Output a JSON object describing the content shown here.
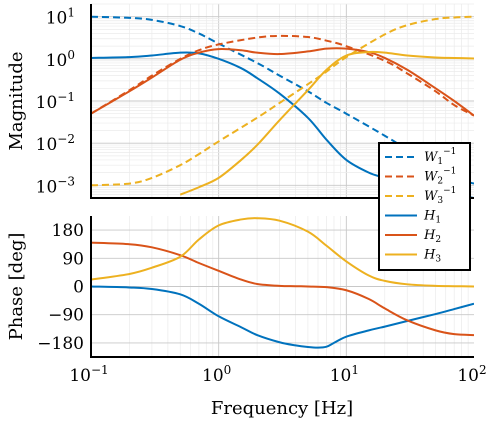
{
  "chart_data": {
    "type": "line",
    "xscale": "log",
    "xlim": [
      0.1,
      100
    ],
    "xlabel": "Frequency [Hz]",
    "x_tick_labels": [
      "10^-1",
      "10^0",
      "10^1",
      "10^2"
    ],
    "x_ticks": [
      0.1,
      1,
      10,
      100
    ],
    "grid": true,
    "legend": {
      "placement": "right, spanning both panels",
      "entries": [
        {
          "label": "W1^-1",
          "base": "W",
          "sub": "1",
          "sup": "−1",
          "color": "#0072BD",
          "dash": true
        },
        {
          "label": "W2^-1",
          "base": "W",
          "sub": "2",
          "sup": "−1",
          "color": "#D95319",
          "dash": true
        },
        {
          "label": "W3^-1",
          "base": "W",
          "sub": "3",
          "sup": "−1",
          "color": "#EDB120",
          "dash": true
        },
        {
          "label": "H1",
          "base": "H",
          "sub": "1",
          "sup": "",
          "color": "#0072BD",
          "dash": false
        },
        {
          "label": "H2",
          "base": "H",
          "sub": "2",
          "sup": "",
          "color": "#D95319",
          "dash": false
        },
        {
          "label": "H3",
          "base": "H",
          "sub": "3",
          "sup": "",
          "color": "#EDB120",
          "dash": false
        }
      ]
    },
    "panels": [
      {
        "name": "magnitude",
        "ylabel": "Magnitude",
        "yscale": "log",
        "ylim": [
          0.0005,
          20
        ],
        "y_ticks": [
          0.001,
          0.01,
          0.1,
          1,
          10
        ],
        "y_tick_labels": [
          "10^-3",
          "10^-2",
          "10^-1",
          "10^0",
          "10^1"
        ],
        "series": [
          {
            "name": "W1^-1",
            "color": "#0072BD",
            "dash": true,
            "x": [
              0.1,
              0.2,
              0.3,
              0.5,
              0.7,
              1,
              2,
              3,
              5,
              7,
              10,
              20,
              30,
              50,
              70,
              100
            ],
            "y": [
              10,
              9.4,
              8.4,
              6,
              4,
              2.3,
              0.8,
              0.4,
              0.17,
              0.09,
              0.05,
              0.015,
              0.007,
              0.0025,
              0.0015,
              0.0011
            ]
          },
          {
            "name": "W2^-1",
            "color": "#D95319",
            "dash": true,
            "x": [
              0.1,
              0.2,
              0.3,
              0.5,
              0.7,
              1,
              2,
              3,
              5,
              7,
              10,
              20,
              30,
              50,
              70,
              100
            ],
            "y": [
              0.05,
              0.18,
              0.4,
              1,
              1.6,
              2.2,
              3.2,
              3.5,
              3.3,
              2.7,
              2,
              0.9,
              0.45,
              0.17,
              0.08,
              0.045
            ]
          },
          {
            "name": "W3^-1",
            "color": "#EDB120",
            "dash": true,
            "x": [
              0.1,
              0.2,
              0.3,
              0.5,
              0.7,
              1,
              2,
              3,
              5,
              7,
              10,
              20,
              30,
              50,
              70,
              100
            ],
            "y": [
              0.001,
              0.0011,
              0.0015,
              0.003,
              0.0055,
              0.011,
              0.04,
              0.09,
              0.25,
              0.5,
              1.1,
              3.8,
              6.3,
              8.8,
              9.6,
              10
            ]
          },
          {
            "name": "H1",
            "color": "#0072BD",
            "dash": false,
            "x": [
              0.1,
              0.2,
              0.3,
              0.5,
              0.7,
              1,
              1.5,
              2,
              3,
              5,
              7,
              10,
              15,
              20,
              30,
              50,
              70,
              100
            ],
            "y": [
              1.05,
              1.1,
              1.2,
              1.4,
              1.35,
              1,
              0.6,
              0.35,
              0.15,
              0.04,
              0.012,
              0.004,
              0.002,
              0.0015,
              0.001,
              0.0007,
              0.0006,
              0.0005
            ]
          },
          {
            "name": "H2",
            "color": "#D95319",
            "dash": false,
            "x": [
              0.1,
              0.2,
              0.3,
              0.5,
              0.7,
              1,
              1.5,
              2,
              3,
              5,
              7,
              10,
              15,
              20,
              30,
              50,
              70,
              100
            ],
            "y": [
              0.05,
              0.17,
              0.36,
              0.95,
              1.4,
              1.7,
              1.6,
              1.4,
              1.3,
              1.5,
              1.75,
              1.75,
              1.45,
              1.05,
              0.55,
              0.2,
              0.1,
              0.045
            ]
          },
          {
            "name": "H3",
            "color": "#EDB120",
            "dash": false,
            "x": [
              0.5,
              0.7,
              1,
              1.5,
              2,
              3,
              5,
              7,
              10,
              15,
              20,
              30,
              50,
              70,
              100
            ],
            "y": [
              0.0006,
              0.0009,
              0.0015,
              0.004,
              0.009,
              0.035,
              0.18,
              0.55,
              1.2,
              1.45,
              1.4,
              1.2,
              1.08,
              1.05,
              1.02
            ]
          }
        ]
      },
      {
        "name": "phase",
        "ylabel": "Phase [deg]",
        "yscale": "linear",
        "ylim": [
          -225,
          225
        ],
        "y_ticks": [
          -180,
          -90,
          0,
          90,
          180
        ],
        "y_tick_labels": [
          "−180",
          "−90",
          "0",
          "90",
          "180"
        ],
        "series": [
          {
            "name": "H1",
            "color": "#0072BD",
            "dash": false,
            "x": [
              0.1,
              0.2,
              0.3,
              0.5,
              0.7,
              1,
              1.5,
              2,
              3,
              4,
              5,
              6,
              7,
              8,
              10,
              15,
              20,
              30,
              50,
              70,
              100
            ],
            "y": [
              0,
              -3,
              -8,
              -25,
              -55,
              -95,
              -130,
              -155,
              -178,
              -188,
              -193,
              -195,
              -192,
              -180,
              -160,
              -140,
              -128,
              -110,
              -88,
              -72,
              -55
            ]
          },
          {
            "name": "H2",
            "color": "#D95319",
            "dash": false,
            "x": [
              0.1,
              0.2,
              0.3,
              0.5,
              0.7,
              1,
              1.5,
              2,
              3,
              4,
              5,
              7,
              10,
              15,
              20,
              30,
              50,
              70,
              100
            ],
            "y": [
              140,
              135,
              125,
              100,
              75,
              50,
              22,
              8,
              2,
              1,
              0,
              -2,
              -12,
              -40,
              -70,
              -108,
              -140,
              -152,
              -155
            ]
          },
          {
            "name": "H3",
            "color": "#EDB120",
            "dash": false,
            "x": [
              0.1,
              0.2,
              0.3,
              0.5,
              0.7,
              1,
              1.5,
              2,
              3,
              5,
              7,
              10,
              15,
              20,
              30,
              50,
              70,
              100
            ],
            "y": [
              22,
              40,
              60,
              95,
              150,
              195,
              214,
              218,
              210,
              175,
              130,
              80,
              35,
              18,
              7,
              2,
              1,
              0
            ]
          }
        ]
      }
    ]
  }
}
